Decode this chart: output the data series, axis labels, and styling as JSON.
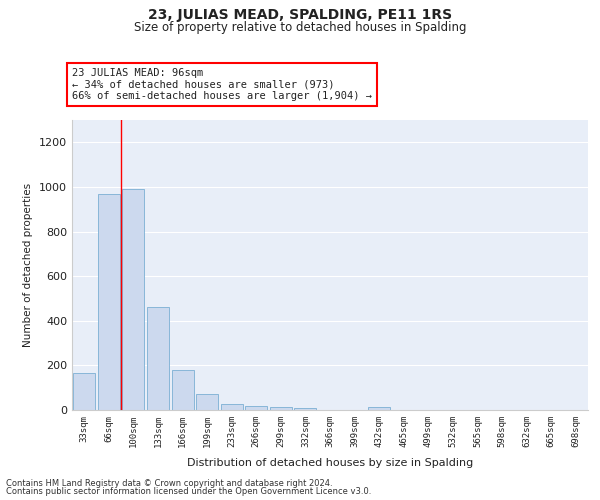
{
  "title": "23, JULIAS MEAD, SPALDING, PE11 1RS",
  "subtitle": "Size of property relative to detached houses in Spalding",
  "xlabel": "Distribution of detached houses by size in Spalding",
  "ylabel": "Number of detached properties",
  "categories": [
    "33sqm",
    "66sqm",
    "100sqm",
    "133sqm",
    "166sqm",
    "199sqm",
    "233sqm",
    "266sqm",
    "299sqm",
    "332sqm",
    "366sqm",
    "399sqm",
    "432sqm",
    "465sqm",
    "499sqm",
    "532sqm",
    "565sqm",
    "598sqm",
    "632sqm",
    "665sqm",
    "698sqm"
  ],
  "values": [
    165,
    970,
    990,
    460,
    180,
    70,
    25,
    20,
    15,
    10,
    0,
    0,
    15,
    0,
    0,
    0,
    0,
    0,
    0,
    0,
    0
  ],
  "bar_color": "#ccd9ee",
  "bar_edge_color": "#7bafd4",
  "red_line_x": 1.5,
  "annotation_line1": "23 JULIAS MEAD: 96sqm",
  "annotation_line2": "← 34% of detached houses are smaller (973)",
  "annotation_line3": "66% of semi-detached houses are larger (1,904) →",
  "ylim": [
    0,
    1300
  ],
  "yticks": [
    0,
    200,
    400,
    600,
    800,
    1000,
    1200
  ],
  "background_color": "#e8eef8",
  "grid_color": "white",
  "footer_line1": "Contains HM Land Registry data © Crown copyright and database right 2024.",
  "footer_line2": "Contains public sector information licensed under the Open Government Licence v3.0."
}
